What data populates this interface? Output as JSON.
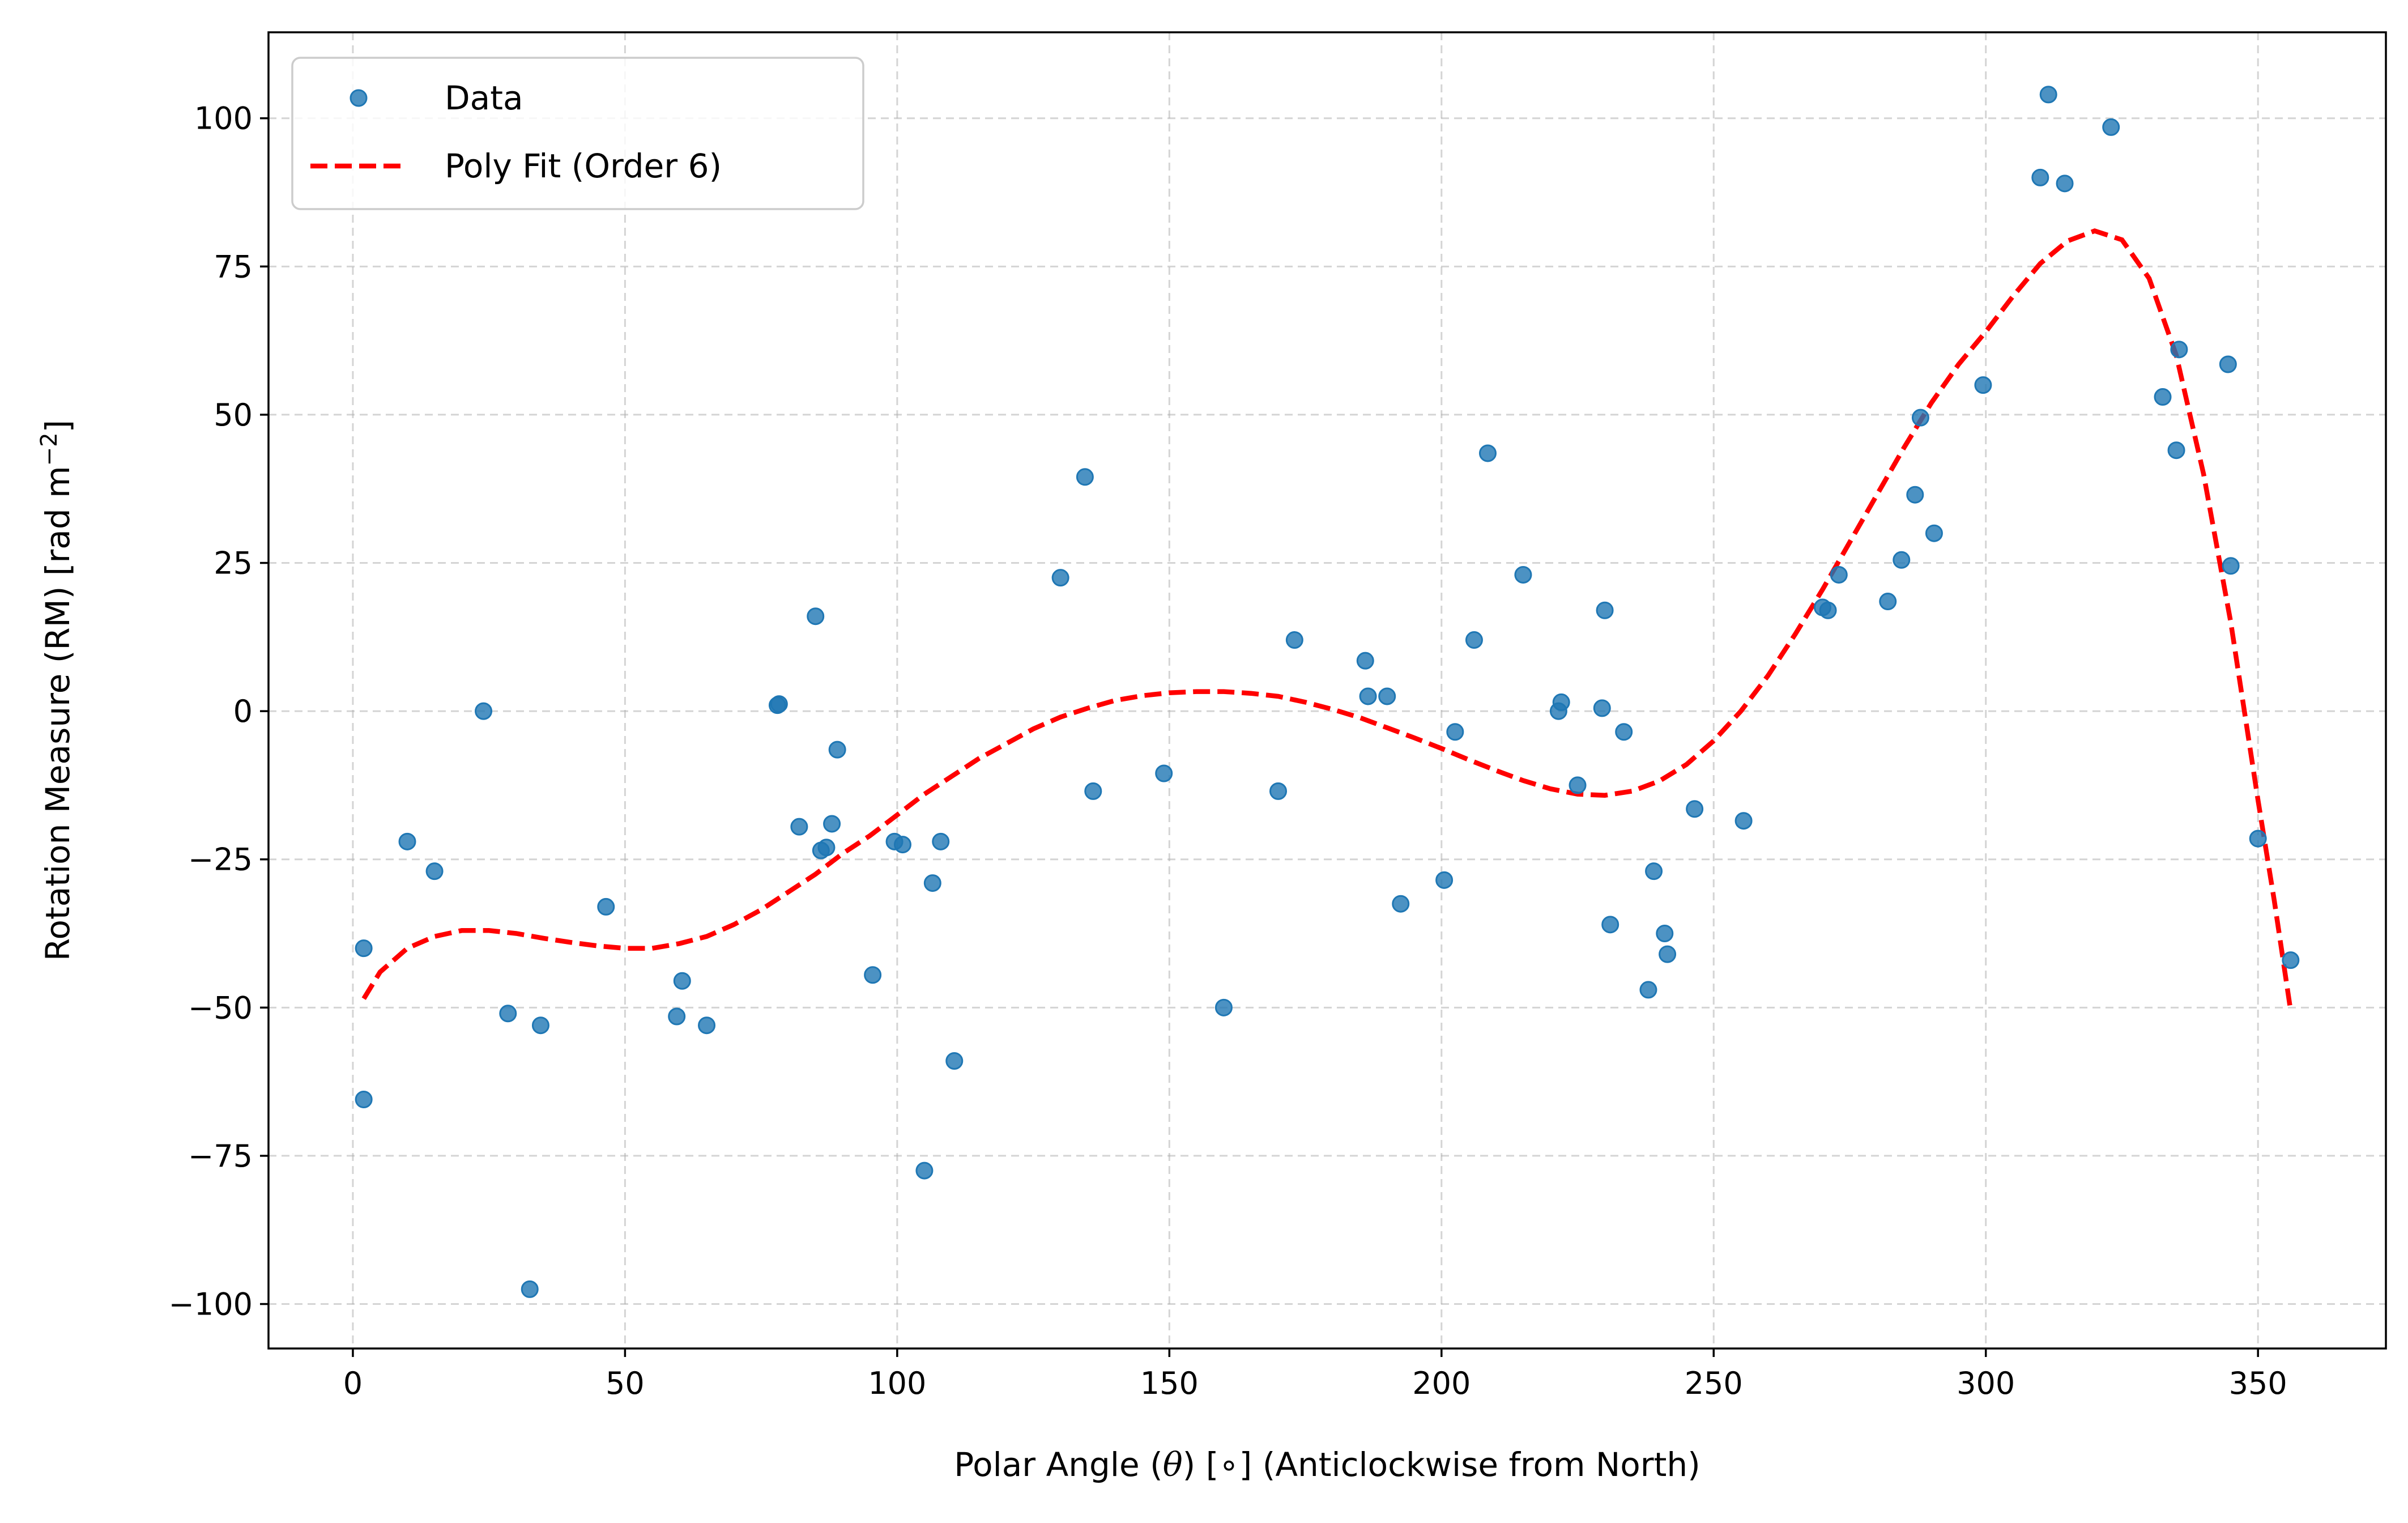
{
  "chart_data": {
    "type": "scatter",
    "title": "",
    "xlabel": "Polar Angle (θ) [∘] (Anticlockwise from North)",
    "xlabel_parts": {
      "prefix": "Polar Angle (",
      "symbol": "θ",
      "suffix": ") [∘] (Anticlockwise from North)"
    },
    "ylabel": "Rotation Measure (RM) [rad m⁻²]",
    "ylabel_parts": {
      "prefix": "Rotation Measure (RM) [rad m",
      "superscript": "−2",
      "suffix": "]"
    },
    "xlim": [
      -15.5,
      373.5
    ],
    "ylim": [
      -107.5,
      114.5
    ],
    "xticks": [
      0,
      50,
      100,
      150,
      200,
      250,
      300,
      350
    ],
    "xtick_labels": [
      "0",
      "50",
      "100",
      "150",
      "200",
      "250",
      "300",
      "350"
    ],
    "yticks": [
      -100,
      -75,
      -50,
      -25,
      0,
      25,
      50,
      75,
      100
    ],
    "ytick_labels": [
      "−100",
      "−75",
      "−50",
      "−25",
      "0",
      "25",
      "50",
      "75",
      "100"
    ],
    "grid": true,
    "legend_position": "top-left",
    "series": [
      {
        "name": "Data",
        "kind": "scatter",
        "color": "#1f77b4",
        "points": [
          [
            2,
            -40
          ],
          [
            2,
            -65.5
          ],
          [
            10,
            -22
          ],
          [
            15,
            -27
          ],
          [
            24,
            0
          ],
          [
            28.5,
            -51
          ],
          [
            32.5,
            -97.5
          ],
          [
            34.5,
            -53
          ],
          [
            46.5,
            -33
          ],
          [
            59.5,
            -51.5
          ],
          [
            60.5,
            -45.5
          ],
          [
            65,
            -53
          ],
          [
            78,
            1
          ],
          [
            78.3,
            1.2
          ],
          [
            82,
            -19.5
          ],
          [
            85,
            16
          ],
          [
            86,
            -23.5
          ],
          [
            87,
            -23
          ],
          [
            88,
            -19
          ],
          [
            89,
            -6.5
          ],
          [
            95.5,
            -44.5
          ],
          [
            99.5,
            -22
          ],
          [
            101,
            -22.5
          ],
          [
            105,
            -77.5
          ],
          [
            106.5,
            -29
          ],
          [
            108,
            -22
          ],
          [
            110.5,
            -59
          ],
          [
            130,
            22.5
          ],
          [
            134.5,
            39.5
          ],
          [
            136,
            -13.5
          ],
          [
            149,
            -10.5
          ],
          [
            160,
            -50
          ],
          [
            170,
            -13.5
          ],
          [
            173,
            12
          ],
          [
            186,
            8.5
          ],
          [
            186.5,
            2.5
          ],
          [
            190,
            2.5
          ],
          [
            192.5,
            -32.5
          ],
          [
            200.5,
            -28.5
          ],
          [
            202.5,
            -3.5
          ],
          [
            206,
            12
          ],
          [
            208.5,
            43.5
          ],
          [
            215,
            23
          ],
          [
            221.5,
            0
          ],
          [
            222,
            1.5
          ],
          [
            225,
            -12.5
          ],
          [
            229.5,
            0.5
          ],
          [
            230,
            17
          ],
          [
            231,
            -36
          ],
          [
            233.5,
            -3.5
          ],
          [
            238,
            -47
          ],
          [
            239,
            -27
          ],
          [
            241,
            -37.5
          ],
          [
            241.5,
            -41
          ],
          [
            246.5,
            -16.5
          ],
          [
            255.5,
            -18.5
          ],
          [
            270,
            17.5
          ],
          [
            271,
            17
          ],
          [
            273,
            23
          ],
          [
            282,
            18.5
          ],
          [
            284.5,
            25.5
          ],
          [
            287,
            36.5
          ],
          [
            288,
            49.5
          ],
          [
            290.5,
            30
          ],
          [
            299.5,
            55
          ],
          [
            310,
            90
          ],
          [
            311.5,
            104
          ],
          [
            314.5,
            89
          ],
          [
            323,
            98.5
          ],
          [
            332.5,
            53
          ],
          [
            335,
            44
          ],
          [
            335.5,
            61
          ],
          [
            344.5,
            58.5
          ],
          [
            345,
            24.5
          ],
          [
            350,
            -21.5
          ],
          [
            356,
            -42
          ]
        ]
      },
      {
        "name": "Poly Fit (Order 6)",
        "kind": "line",
        "style": "dashed",
        "color": "#ff0000",
        "points": [
          [
            2,
            -48.5
          ],
          [
            5,
            -44
          ],
          [
            10,
            -40
          ],
          [
            15,
            -38
          ],
          [
            20,
            -37
          ],
          [
            25,
            -37
          ],
          [
            30,
            -37.5
          ],
          [
            35,
            -38.3
          ],
          [
            40,
            -39
          ],
          [
            45,
            -39.6
          ],
          [
            50,
            -40
          ],
          [
            55,
            -40
          ],
          [
            60,
            -39.2
          ],
          [
            65,
            -38
          ],
          [
            70,
            -36
          ],
          [
            75,
            -33.5
          ],
          [
            80,
            -30.5
          ],
          [
            85,
            -27.5
          ],
          [
            90,
            -24
          ],
          [
            95,
            -21
          ],
          [
            100,
            -17.5
          ],
          [
            105,
            -14
          ],
          [
            110,
            -11
          ],
          [
            115,
            -8
          ],
          [
            120,
            -5.5
          ],
          [
            125,
            -3
          ],
          [
            130,
            -1
          ],
          [
            135,
            0.5
          ],
          [
            140,
            1.8
          ],
          [
            145,
            2.6
          ],
          [
            150,
            3.1
          ],
          [
            155,
            3.3
          ],
          [
            160,
            3.3
          ],
          [
            165,
            3
          ],
          [
            170,
            2.5
          ],
          [
            175,
            1.5
          ],
          [
            180,
            0.3
          ],
          [
            185,
            -1.1
          ],
          [
            190,
            -2.8
          ],
          [
            195,
            -4.5
          ],
          [
            200,
            -6.3
          ],
          [
            205,
            -8.2
          ],
          [
            210,
            -10
          ],
          [
            215,
            -11.7
          ],
          [
            220,
            -13.1
          ],
          [
            225,
            -14
          ],
          [
            230,
            -14.2
          ],
          [
            235,
            -13.5
          ],
          [
            240,
            -11.8
          ],
          [
            245,
            -9
          ],
          [
            250,
            -5
          ],
          [
            255,
            0
          ],
          [
            260,
            6
          ],
          [
            265,
            13
          ],
          [
            270,
            20.5
          ],
          [
            275,
            28.5
          ],
          [
            280,
            36.5
          ],
          [
            285,
            44.5
          ],
          [
            290,
            52
          ],
          [
            295,
            58.5
          ],
          [
            300,
            64
          ],
          [
            305,
            70
          ],
          [
            310,
            75.5
          ],
          [
            315,
            79.3
          ],
          [
            320,
            81
          ],
          [
            325,
            79.5
          ],
          [
            330,
            73
          ],
          [
            335,
            60
          ],
          [
            340,
            40
          ],
          [
            345,
            15
          ],
          [
            350,
            -15
          ],
          [
            353,
            -32
          ],
          [
            356,
            -50.5
          ]
        ]
      }
    ]
  }
}
